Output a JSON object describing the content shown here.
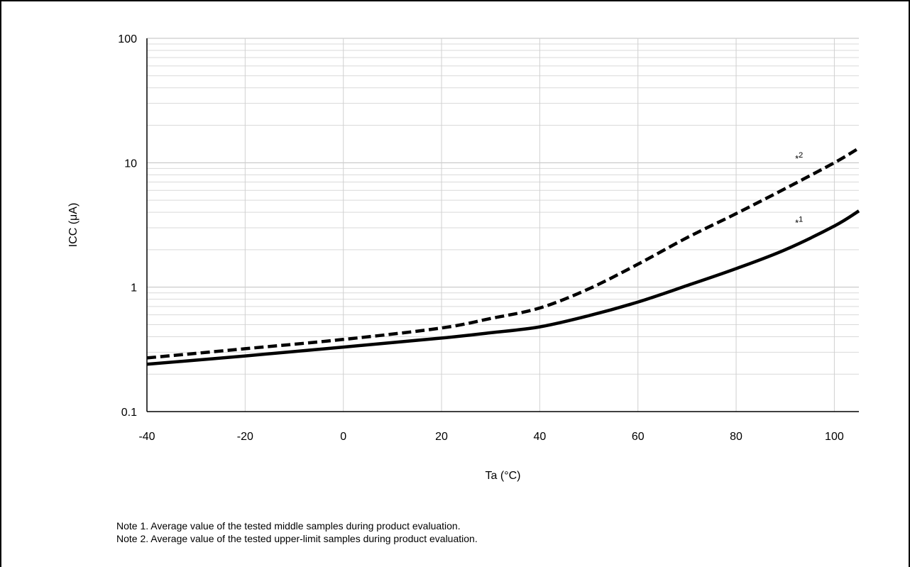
{
  "chart_data": {
    "type": "line",
    "title": "",
    "xlabel": "Ta (°C)",
    "ylabel": "ICC (μA)",
    "xlim": [
      -40,
      105
    ],
    "ylim": [
      0.1,
      100
    ],
    "yscale": "log",
    "grid": true,
    "x_ticks": [
      "-40",
      "-20",
      "0",
      "20",
      "40",
      "60",
      "80",
      "100"
    ],
    "y_ticks": [
      "0.1",
      "1",
      "10",
      "100"
    ],
    "series": [
      {
        "annotation": "*1",
        "line_style": "solid",
        "x": [
          -40,
          -20,
          0,
          20,
          30,
          40,
          50,
          60,
          70,
          80,
          90,
          100,
          105
        ],
        "y": [
          0.24,
          0.28,
          0.33,
          0.39,
          0.43,
          0.48,
          0.59,
          0.76,
          1.03,
          1.41,
          2.0,
          3.1,
          4.1
        ]
      },
      {
        "annotation": "*2",
        "line_style": "dashed",
        "x": [
          -40,
          -20,
          0,
          20,
          30,
          40,
          50,
          60,
          70,
          80,
          90,
          100,
          105
        ],
        "y": [
          0.27,
          0.32,
          0.38,
          0.47,
          0.56,
          0.68,
          0.97,
          1.53,
          2.5,
          3.9,
          6.2,
          10.0,
          13.1
        ]
      }
    ],
    "annotations": [
      {
        "label": "*",
        "sup": "1",
        "x": 92,
        "y": 3.1
      },
      {
        "label": "*",
        "sup": "2",
        "x": 92,
        "y": 10.2
      }
    ]
  },
  "notes": [
    {
      "text": "Note 1.  Average value of the tested middle samples during product evaluation."
    },
    {
      "text": "Note 2.  Average value of the tested upper-limit samples during product evaluation."
    }
  ]
}
